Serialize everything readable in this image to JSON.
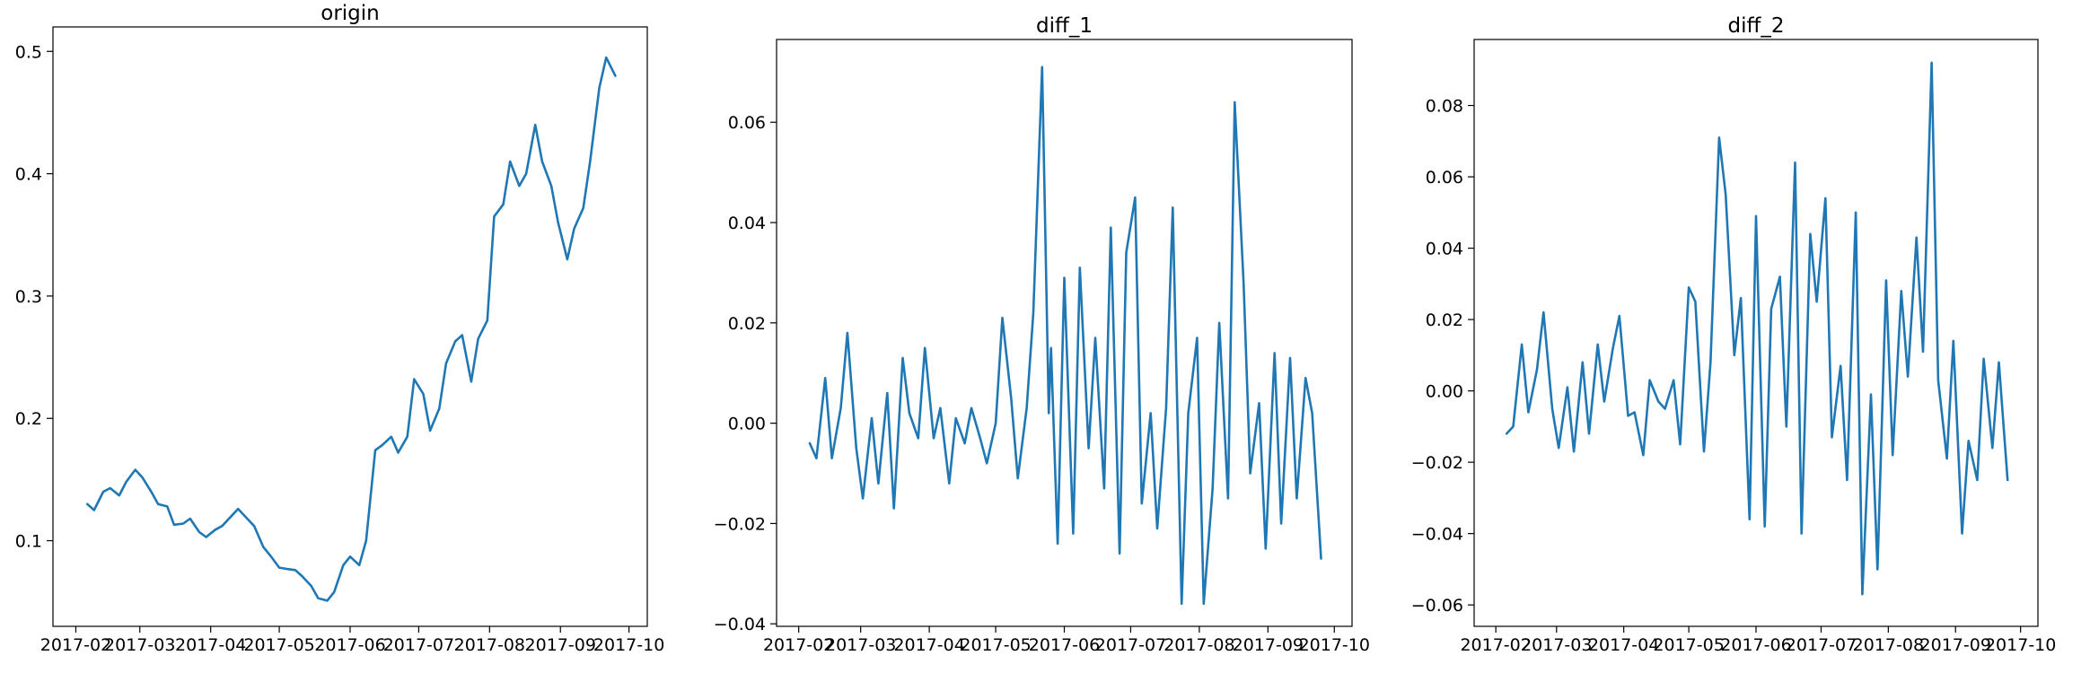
{
  "chart_data": [
    {
      "type": "line",
      "title": "origin",
      "xlabel": "",
      "ylabel": "",
      "color": "#1f77b4",
      "xlim": [
        "2017-01-22",
        "2017-10-09"
      ],
      "ylim": [
        0.03,
        0.52
      ],
      "x_ticks": [
        "2017-02",
        "2017-03",
        "2017-04",
        "2017-05",
        "2017-06",
        "2017-07",
        "2017-08",
        "2017-09",
        "2017-10"
      ],
      "y_ticks": [
        "0.1",
        "0.2",
        "0.3",
        "0.4",
        "0.5"
      ],
      "series": [
        {
          "x": [
            "2017-02-06",
            "2017-02-09",
            "2017-02-13",
            "2017-02-16",
            "2017-02-20",
            "2017-02-23",
            "2017-02-27",
            "2017-03-02",
            "2017-03-06",
            "2017-03-09",
            "2017-03-13",
            "2017-03-16",
            "2017-03-20",
            "2017-03-23",
            "2017-03-27",
            "2017-03-30",
            "2017-04-03",
            "2017-04-06",
            "2017-04-10",
            "2017-04-13",
            "2017-04-17",
            "2017-04-20",
            "2017-04-24",
            "2017-04-27",
            "2017-05-01",
            "2017-05-04",
            "2017-05-08",
            "2017-05-11",
            "2017-05-15",
            "2017-05-18",
            "2017-05-22",
            "2017-05-25",
            "2017-05-29",
            "2017-06-01",
            "2017-06-05",
            "2017-06-08",
            "2017-06-12",
            "2017-06-15",
            "2017-06-19",
            "2017-06-22",
            "2017-06-26",
            "2017-06-29",
            "2017-07-03",
            "2017-07-06",
            "2017-07-10",
            "2017-07-13",
            "2017-07-17",
            "2017-07-20",
            "2017-07-24",
            "2017-07-27",
            "2017-07-31",
            "2017-08-03",
            "2017-08-07",
            "2017-08-10",
            "2017-08-14",
            "2017-08-17",
            "2017-08-21",
            "2017-08-24",
            "2017-08-28",
            "2017-08-31",
            "2017-09-04",
            "2017-09-07",
            "2017-09-11",
            "2017-09-14",
            "2017-09-18",
            "2017-09-21",
            "2017-09-25"
          ],
          "values": [
            0.13,
            0.125,
            0.14,
            0.143,
            0.137,
            0.148,
            0.158,
            0.152,
            0.14,
            0.13,
            0.128,
            0.113,
            0.114,
            0.118,
            0.107,
            0.103,
            0.109,
            0.112,
            0.12,
            0.126,
            0.118,
            0.112,
            0.095,
            0.088,
            0.078,
            0.077,
            0.076,
            0.071,
            0.063,
            0.053,
            0.051,
            0.058,
            0.08,
            0.087,
            0.08,
            0.1,
            0.174,
            0.178,
            0.185,
            0.172,
            0.185,
            0.232,
            0.22,
            0.19,
            0.208,
            0.245,
            0.263,
            0.268,
            0.23,
            0.265,
            0.28,
            0.365,
            0.375,
            0.41,
            0.39,
            0.4,
            0.44,
            0.41,
            0.39,
            0.36,
            0.33,
            0.355,
            0.372,
            0.41,
            0.47,
            0.495,
            0.48
          ]
        }
      ]
    },
    {
      "type": "line",
      "title": "diff_1",
      "xlabel": "",
      "ylabel": "",
      "color": "#1f77b4",
      "xlim": [
        "2017-01-22",
        "2017-10-09"
      ],
      "ylim": [
        -0.0405,
        0.0765
      ],
      "x_ticks": [
        "2017-02",
        "2017-03",
        "2017-04",
        "2017-05",
        "2017-06",
        "2017-07",
        "2017-08",
        "2017-09",
        "2017-10"
      ],
      "y_ticks": [
        "−0.04",
        "−0.02",
        "0.00",
        "0.02",
        "0.04",
        "0.06"
      ],
      "series": [
        {
          "x": [
            "2017-02-06",
            "2017-02-09",
            "2017-02-13",
            "2017-02-16",
            "2017-02-20",
            "2017-02-23",
            "2017-02-27",
            "2017-03-02",
            "2017-03-06",
            "2017-03-09",
            "2017-03-13",
            "2017-03-16",
            "2017-03-20",
            "2017-03-23",
            "2017-03-27",
            "2017-03-30",
            "2017-04-03",
            "2017-04-06",
            "2017-04-10",
            "2017-04-13",
            "2017-04-17",
            "2017-04-20",
            "2017-04-24",
            "2017-04-27",
            "2017-05-01",
            "2017-05-04",
            "2017-05-08",
            "2017-05-11",
            "2017-05-15",
            "2017-05-18",
            "2017-05-22",
            "2017-05-25",
            "2017-05-26",
            "2017-05-29",
            "2017-06-01",
            "2017-06-05",
            "2017-06-08",
            "2017-06-12",
            "2017-06-15",
            "2017-06-19",
            "2017-06-22",
            "2017-06-26",
            "2017-06-29",
            "2017-07-03",
            "2017-07-06",
            "2017-07-10",
            "2017-07-13",
            "2017-07-17",
            "2017-07-20",
            "2017-07-24",
            "2017-07-27",
            "2017-07-31",
            "2017-08-03",
            "2017-08-07",
            "2017-08-10",
            "2017-08-14",
            "2017-08-17",
            "2017-08-21",
            "2017-08-24",
            "2017-08-28",
            "2017-08-31",
            "2017-09-04",
            "2017-09-07",
            "2017-09-11",
            "2017-09-14",
            "2017-09-18",
            "2017-09-21",
            "2017-09-25"
          ],
          "values": [
            -0.004,
            -0.007,
            0.009,
            -0.007,
            0.003,
            0.018,
            -0.005,
            -0.015,
            0.001,
            -0.012,
            0.006,
            -0.017,
            0.013,
            0.002,
            -0.003,
            0.015,
            -0.003,
            0.003,
            -0.012,
            0.001,
            -0.004,
            0.003,
            -0.003,
            -0.008,
            0.0,
            0.021,
            0.005,
            -0.011,
            0.003,
            0.022,
            0.071,
            0.002,
            0.015,
            -0.024,
            0.029,
            -0.022,
            0.031,
            -0.005,
            0.017,
            -0.013,
            0.039,
            -0.026,
            0.034,
            0.045,
            -0.016,
            0.002,
            -0.021,
            0.003,
            0.043,
            -0.036,
            0.002,
            0.017,
            -0.036,
            -0.013,
            0.02,
            -0.015,
            0.064,
            0.028,
            -0.01,
            0.004,
            -0.025,
            0.014,
            -0.02,
            0.013,
            -0.015,
            0.009,
            0.002,
            -0.027
          ]
        }
      ]
    },
    {
      "type": "line",
      "title": "diff_2",
      "xlabel": "",
      "ylabel": "",
      "color": "#1f77b4",
      "xlim": [
        "2017-01-22",
        "2017-10-09"
      ],
      "ylim": [
        -0.066,
        0.0985
      ],
      "x_ticks": [
        "2017-02",
        "2017-03",
        "2017-04",
        "2017-05",
        "2017-06",
        "2017-07",
        "2017-08",
        "2017-09",
        "2017-10"
      ],
      "y_ticks": [
        "−0.06",
        "−0.04",
        "−0.02",
        "0.00",
        "0.02",
        "0.04",
        "0.06",
        "0.08"
      ],
      "series": [
        {
          "x": [
            "2017-02-06",
            "2017-02-09",
            "2017-02-13",
            "2017-02-16",
            "2017-02-20",
            "2017-02-23",
            "2017-02-27",
            "2017-03-02",
            "2017-03-06",
            "2017-03-09",
            "2017-03-13",
            "2017-03-16",
            "2017-03-20",
            "2017-03-23",
            "2017-03-27",
            "2017-03-30",
            "2017-04-03",
            "2017-04-06",
            "2017-04-10",
            "2017-04-13",
            "2017-04-17",
            "2017-04-20",
            "2017-04-24",
            "2017-04-27",
            "2017-05-01",
            "2017-05-04",
            "2017-05-08",
            "2017-05-11",
            "2017-05-15",
            "2017-05-18",
            "2017-05-22",
            "2017-05-25",
            "2017-05-29",
            "2017-06-01",
            "2017-06-05",
            "2017-06-08",
            "2017-06-12",
            "2017-06-15",
            "2017-06-19",
            "2017-06-22",
            "2017-06-26",
            "2017-06-29",
            "2017-07-03",
            "2017-07-06",
            "2017-07-10",
            "2017-07-13",
            "2017-07-17",
            "2017-07-20",
            "2017-07-24",
            "2017-07-27",
            "2017-07-31",
            "2017-08-03",
            "2017-08-07",
            "2017-08-10",
            "2017-08-14",
            "2017-08-17",
            "2017-08-21",
            "2017-08-24",
            "2017-08-28",
            "2017-08-31",
            "2017-09-04",
            "2017-09-07",
            "2017-09-11",
            "2017-09-14",
            "2017-09-18",
            "2017-09-21",
            "2017-09-25"
          ],
          "values": [
            -0.012,
            -0.01,
            0.013,
            -0.006,
            0.006,
            0.022,
            -0.005,
            -0.016,
            0.001,
            -0.017,
            0.008,
            -0.012,
            0.013,
            -0.003,
            0.012,
            0.021,
            -0.007,
            -0.006,
            -0.018,
            0.003,
            -0.003,
            -0.005,
            0.003,
            -0.015,
            0.029,
            0.025,
            -0.017,
            0.008,
            0.071,
            0.055,
            0.01,
            0.026,
            -0.036,
            0.049,
            -0.038,
            0.023,
            0.032,
            -0.01,
            0.064,
            -0.04,
            0.044,
            0.025,
            0.054,
            -0.013,
            0.007,
            -0.025,
            0.05,
            -0.057,
            -0.001,
            -0.05,
            0.031,
            -0.018,
            0.028,
            0.004,
            0.043,
            0.011,
            0.092,
            0.003,
            -0.019,
            0.014,
            -0.04,
            -0.014,
            -0.025,
            0.009,
            -0.016,
            0.008,
            -0.025
          ]
        }
      ]
    }
  ]
}
